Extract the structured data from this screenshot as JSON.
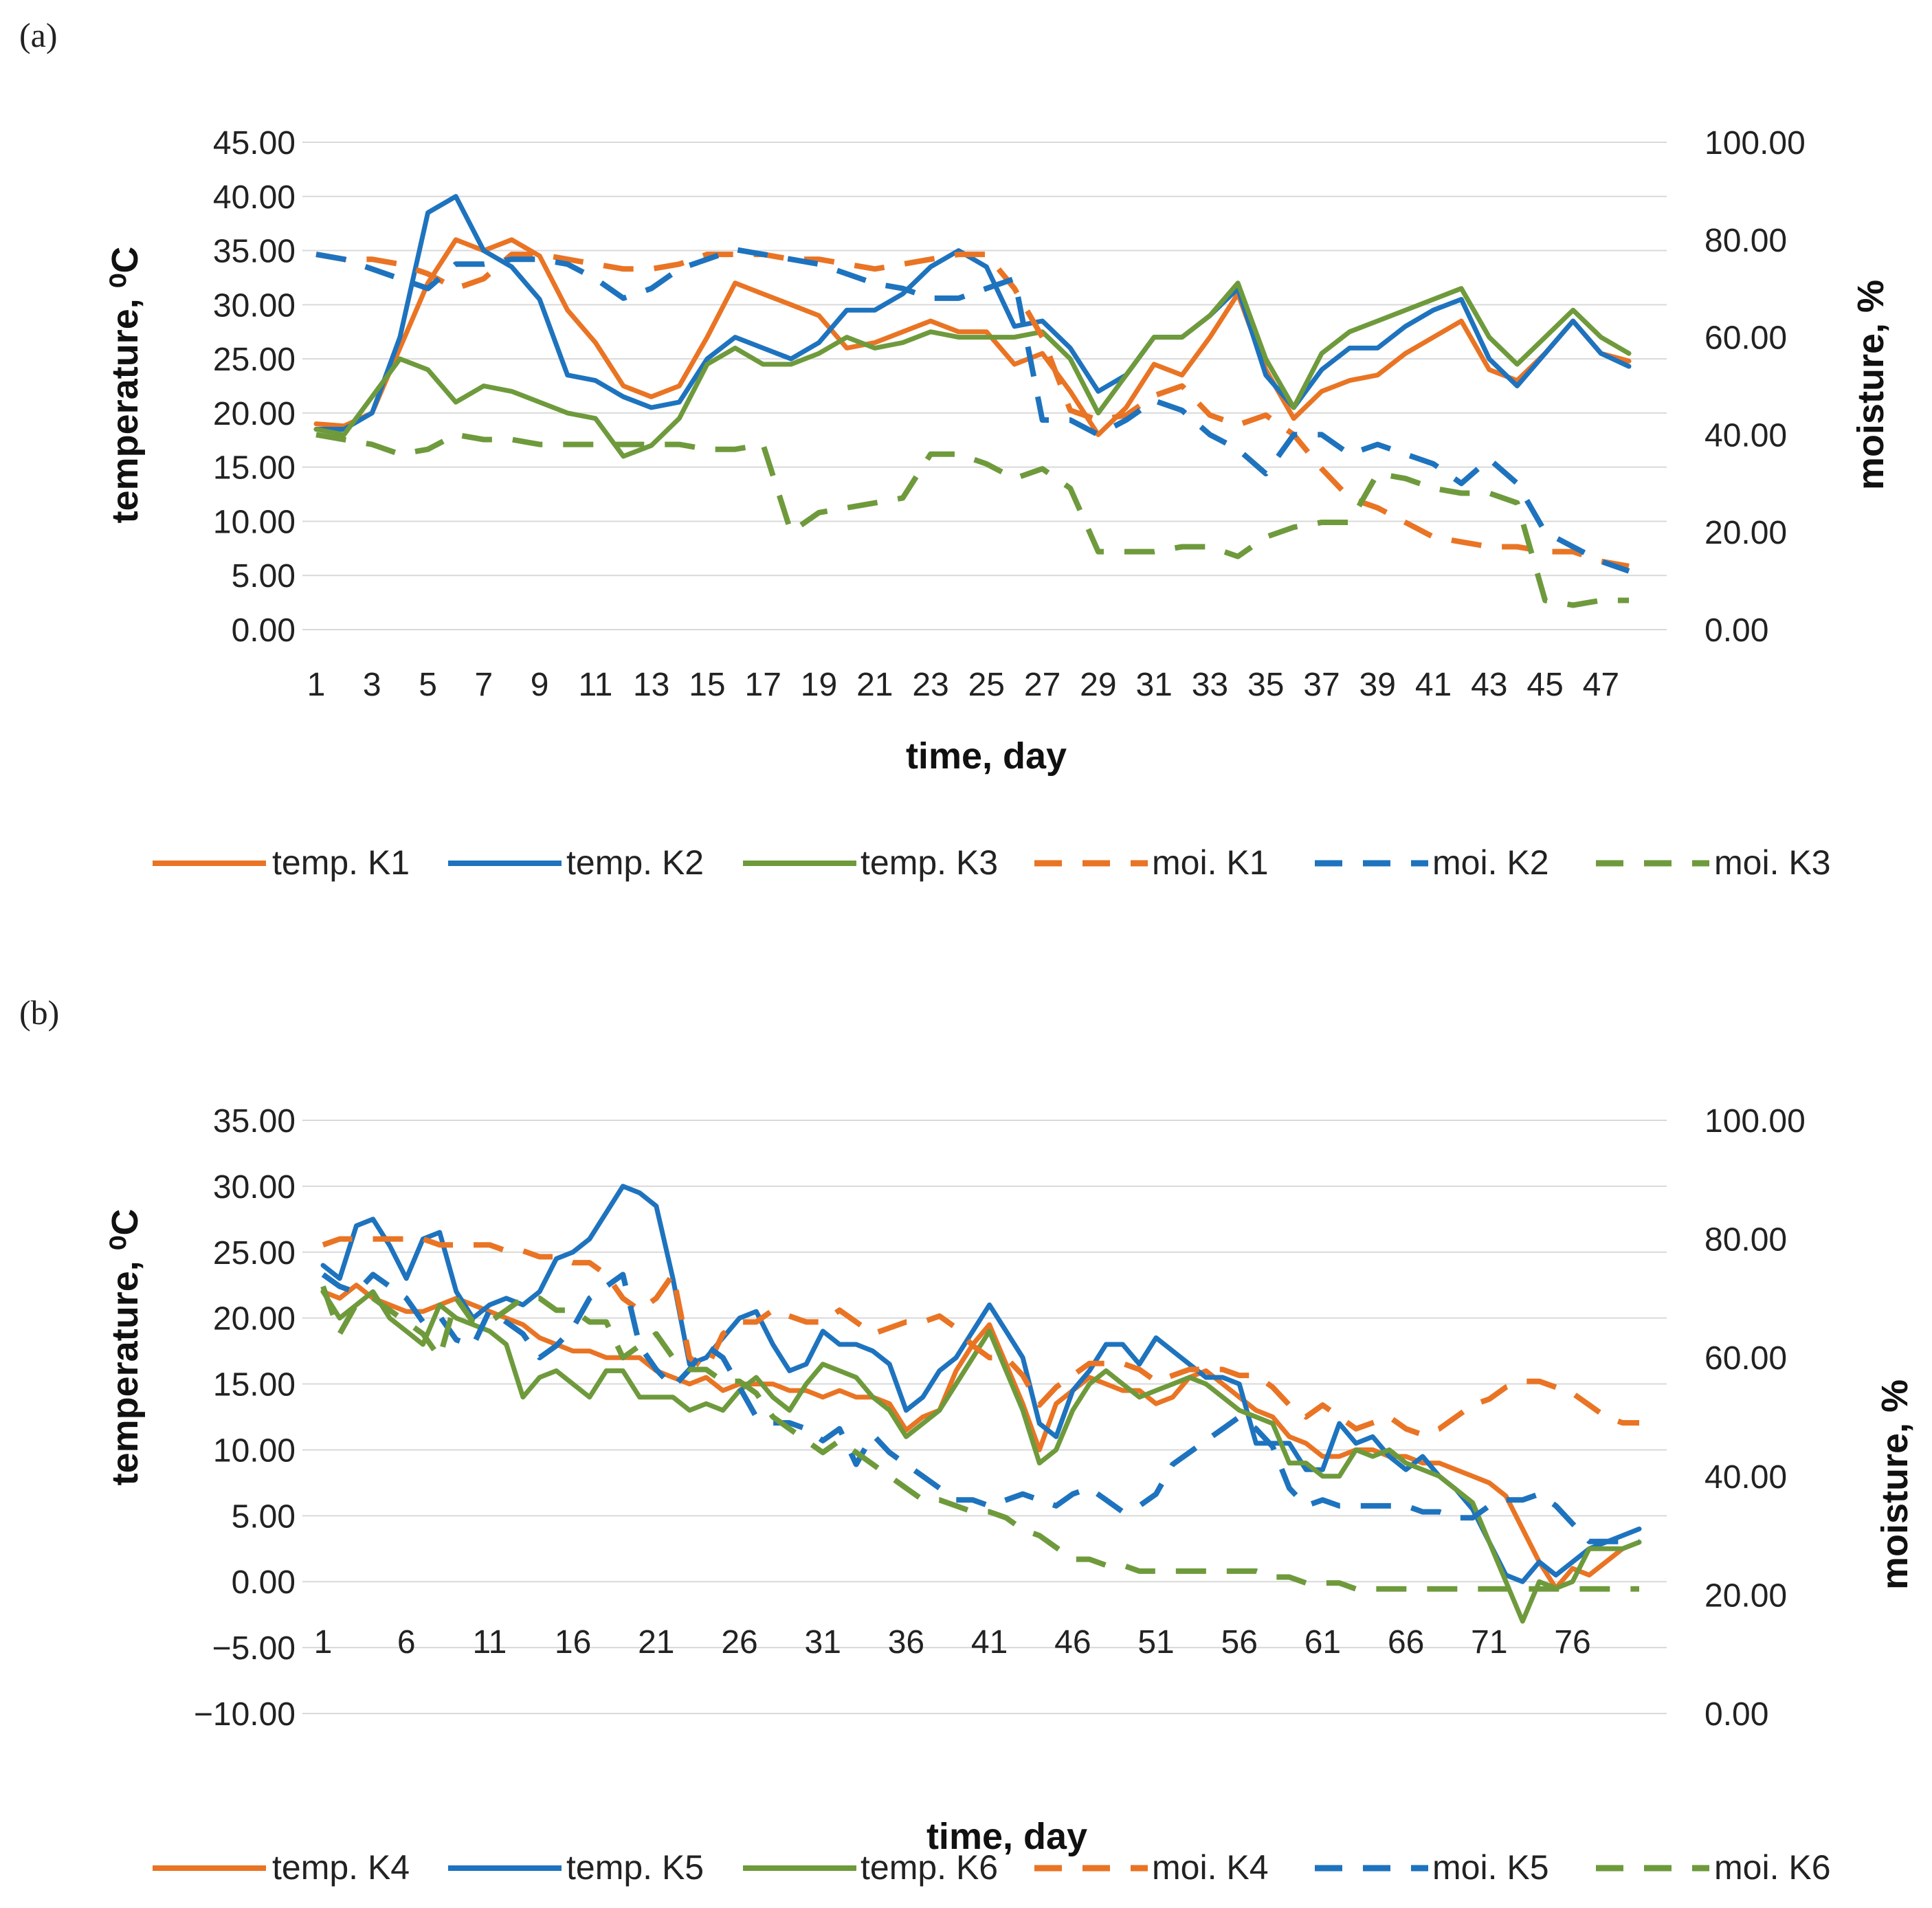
{
  "colors": {
    "orange": "#E97424",
    "blue": "#1E73BE",
    "green": "#6E9A3C",
    "grid": "#d9d9d9"
  },
  "chart_data": [
    {
      "panel": "(a)",
      "type": "line",
      "xlabel": "time, day",
      "ylabel_left": "temperature, ⁰C",
      "ylabel_right": "moisture, %",
      "ylim_left": [
        0,
        45
      ],
      "ylim_right": [
        0,
        100
      ],
      "left_ticks": [
        "0.00",
        "5.00",
        "10.00",
        "15.00",
        "20.00",
        "25.00",
        "30.00",
        "35.00",
        "40.00",
        "45.00"
      ],
      "right_ticks": [
        "0.00",
        "20.00",
        "40.00",
        "60.00",
        "80.00",
        "100.00"
      ],
      "x_ticks": [
        1,
        3,
        5,
        7,
        9,
        11,
        13,
        15,
        17,
        19,
        21,
        23,
        25,
        27,
        29,
        31,
        33,
        35,
        37,
        39,
        41,
        43,
        45,
        47
      ],
      "x_max": 48,
      "series": [
        {
          "name": "temp. K1",
          "axis": "left",
          "style": "solid",
          "color": "orange",
          "values": [
            19,
            18.8,
            20,
            26,
            32,
            36,
            35,
            36,
            34.5,
            29.5,
            26.5,
            22.5,
            21.5,
            22.5,
            27,
            32,
            31,
            30,
            29,
            26,
            26.5,
            27.5,
            28.5,
            27.5,
            27.5,
            24.5,
            25.5,
            22,
            18,
            20.5,
            24.5,
            23.5,
            27,
            31,
            24,
            19.5,
            22,
            23,
            23.5,
            25.5,
            27,
            28.5,
            24,
            23,
            25.5,
            28.5,
            25.5,
            24.8
          ]
        },
        {
          "name": "temp. K2",
          "axis": "left",
          "style": "solid",
          "color": "blue",
          "values": [
            18.5,
            18.5,
            20,
            27,
            38.5,
            40,
            35,
            33.5,
            30.5,
            23.5,
            23,
            21.5,
            20.5,
            21,
            25,
            27,
            26,
            25,
            26.5,
            29.5,
            29.5,
            31,
            33.5,
            35,
            33.5,
            28,
            28.5,
            26,
            22,
            23.5,
            27,
            27,
            29,
            31.5,
            23.5,
            20.5,
            24,
            26,
            26,
            28,
            29.5,
            30.5,
            25,
            22.5,
            25.5,
            28.5,
            25.5,
            24.3
          ]
        },
        {
          "name": "temp. K3",
          "axis": "left",
          "style": "solid",
          "color": "green",
          "values": [
            18.5,
            18,
            21.5,
            25,
            24,
            21,
            22.5,
            22,
            21,
            20,
            19.5,
            16,
            17,
            19.5,
            24.5,
            26,
            24.5,
            24.5,
            25.5,
            27,
            26,
            26.5,
            27.5,
            27,
            27,
            27,
            27.5,
            25,
            20,
            23.5,
            27,
            27,
            29,
            32,
            25,
            20.5,
            25.5,
            27.5,
            28.5,
            29.5,
            30.5,
            31.5,
            27,
            24.5,
            27,
            29.5,
            27,
            25.5
          ]
        },
        {
          "name": "moi. K1",
          "axis": "right",
          "style": "dashed",
          "color": "orange",
          "values": [
            77,
            76,
            76,
            75,
            73,
            70,
            72,
            77,
            77,
            76,
            75,
            74,
            74,
            75,
            77,
            77,
            77,
            76,
            76,
            75,
            74,
            75,
            76,
            77,
            77,
            70,
            60,
            45,
            43,
            44,
            48,
            50,
            44,
            42,
            44,
            40,
            33,
            27,
            25,
            22,
            19,
            18,
            17,
            17,
            16,
            16,
            14,
            13
          ]
        },
        {
          "name": "moi. K2",
          "axis": "right",
          "style": "dashed",
          "color": "blue",
          "values": [
            77,
            76,
            74,
            72,
            70,
            75,
            75,
            76,
            76,
            75,
            72,
            68,
            70,
            74,
            76,
            78,
            77,
            76,
            75,
            73,
            71,
            70,
            68,
            68,
            70,
            72,
            43,
            43,
            40,
            43,
            47,
            45,
            40,
            37,
            32,
            40,
            40,
            36,
            38,
            36,
            34,
            30,
            35,
            30,
            20,
            17,
            14,
            12
          ]
        },
        {
          "name": "moi. K3",
          "axis": "right",
          "style": "dashed",
          "color": "green",
          "values": [
            40,
            39,
            38,
            36,
            37,
            40,
            39,
            39,
            38,
            38,
            38,
            38,
            38,
            38,
            37,
            37,
            38,
            20,
            24,
            25,
            26,
            27,
            36,
            36,
            34,
            31,
            33,
            29,
            16,
            16,
            16,
            17,
            17,
            15,
            19,
            21,
            22,
            22,
            32,
            31,
            29,
            28,
            28,
            26,
            6,
            5,
            6,
            6
          ]
        }
      ]
    },
    {
      "panel": "(b)",
      "type": "line",
      "xlabel": "time, day",
      "ylabel_left": "temperature, ⁰C",
      "ylabel_right": "moisture, %",
      "ylim_left": [
        -10,
        35
      ],
      "ylim_right": [
        0,
        100
      ],
      "left_ticks": [
        "−10.00",
        "−5.00",
        "0.00",
        "5.00",
        "10.00",
        "15.00",
        "20.00",
        "25.00",
        "30.00",
        "35.00"
      ],
      "right_ticks": [
        "0.00",
        "20.00",
        "40.00",
        "60.00",
        "80.00",
        "100.00"
      ],
      "x_ticks": [
        1,
        6,
        11,
        16,
        21,
        26,
        31,
        36,
        41,
        46,
        51,
        56,
        61,
        66,
        71,
        76
      ],
      "x_max": 80,
      "series": [
        {
          "name": "temp. K4",
          "axis": "left",
          "style": "solid",
          "color": "orange",
          "values": [
            22.0,
            21.5,
            22.5,
            21.5,
            21.0,
            20.5,
            20.5,
            21.0,
            21.5,
            21.0,
            20.5,
            20.0,
            19.5,
            18.5,
            18.0,
            17.5,
            17.5,
            17.0,
            17.0,
            17.0,
            16.0,
            15.5,
            15.0,
            15.5,
            14.5,
            15.0,
            15.0,
            15.0,
            14.5,
            14.5,
            14.0,
            14.5,
            14.0,
            14.0,
            13.5,
            11.5,
            12.5,
            13.0,
            16.0,
            18.0,
            19.5,
            16.5,
            13.5,
            10.0,
            13.5,
            14.5,
            15.5,
            15.0,
            14.5,
            14.5,
            13.5,
            14.0,
            15.5,
            16.0,
            15.0,
            14.0,
            13.0,
            12.5,
            11.0,
            10.5,
            9.5,
            9.5,
            10.0,
            10.0,
            9.5,
            9.5,
            9.0,
            9.0,
            8.5,
            8.0,
            7.5,
            6.5,
            4.0,
            1.5,
            -0.5,
            1.0,
            0.5,
            1.5,
            2.5,
            3.0
          ]
        },
        {
          "name": "temp. K5",
          "axis": "left",
          "style": "solid",
          "color": "blue",
          "values": [
            24,
            23,
            27,
            27.5,
            25.5,
            23,
            26,
            26.5,
            22,
            20,
            21,
            21.5,
            21,
            22,
            24.5,
            25,
            26,
            28,
            30,
            29.5,
            28.5,
            23,
            16.5,
            17,
            18.5,
            20,
            20.5,
            18,
            16,
            16.5,
            19,
            18,
            18,
            17.5,
            16.5,
            13,
            14,
            16,
            17,
            19,
            21,
            19,
            17,
            12,
            11,
            14.5,
            16,
            18,
            18,
            16.5,
            18.5,
            17.5,
            16.5,
            15.5,
            15.5,
            15,
            10.5,
            10.5,
            10.5,
            8.5,
            8.5,
            12,
            10.5,
            11,
            9.5,
            8.5,
            9.5,
            8,
            7,
            5.5,
            3,
            0.5,
            0,
            1.5,
            0.5,
            1.5,
            2.5,
            3,
            3.5,
            4
          ]
        },
        {
          "name": "temp. K6",
          "axis": "left",
          "style": "solid",
          "color": "green",
          "values": [
            22,
            20,
            21,
            22,
            20,
            19,
            18,
            21,
            20,
            19.5,
            19,
            18,
            14,
            15.5,
            16,
            15,
            14,
            16,
            16,
            14,
            14,
            14,
            13,
            13.5,
            13,
            14.5,
            15.5,
            14,
            13,
            15,
            16.5,
            16,
            15.5,
            14,
            13,
            11,
            12,
            13,
            15,
            17,
            19,
            16,
            13,
            9,
            10,
            13,
            15,
            16,
            15,
            14,
            14.5,
            15,
            15.5,
            15,
            14,
            13,
            12.5,
            12,
            9,
            9,
            8,
            8,
            10,
            9.5,
            10,
            9,
            8.5,
            8,
            7,
            6,
            3,
            0,
            -3,
            0,
            -0.5,
            0,
            2.5,
            2.5,
            2.5,
            3
          ]
        },
        {
          "name": "moi. K4",
          "axis": "right",
          "style": "dashed",
          "color": "orange",
          "values": [
            79,
            80,
            80,
            80,
            80,
            80,
            80,
            79,
            79,
            79,
            79,
            78,
            78,
            77,
            77,
            76,
            76,
            74,
            70,
            68,
            70,
            74,
            60,
            58,
            64,
            66,
            66,
            68,
            67,
            66,
            66,
            68,
            66,
            64,
            65,
            66,
            66,
            67,
            65,
            62,
            60,
            60,
            57,
            52,
            55,
            57,
            59,
            59,
            59,
            58,
            56,
            57,
            58,
            58,
            58,
            57,
            57,
            55,
            52,
            50,
            52,
            50,
            48,
            49,
            50,
            48,
            47,
            48,
            50,
            52,
            53,
            55,
            56,
            56,
            55,
            54,
            52,
            50,
            49,
            49
          ]
        },
        {
          "name": "moi. K5",
          "axis": "right",
          "style": "dashed",
          "color": "blue",
          "values": [
            74,
            72,
            71,
            74,
            72,
            70,
            66,
            67,
            63,
            62,
            68,
            66,
            64,
            60,
            62,
            65,
            70,
            72,
            74,
            62,
            58,
            55,
            58,
            62,
            60,
            55,
            50,
            49,
            49,
            48,
            46,
            48,
            42,
            47,
            44,
            42,
            40,
            38,
            36,
            36,
            35,
            36,
            37,
            36,
            35,
            37,
            38,
            36,
            34,
            35,
            37,
            42,
            44,
            46,
            48,
            50,
            48,
            45,
            38,
            35,
            36,
            35,
            35,
            35,
            35,
            35,
            34,
            34,
            33,
            33,
            35,
            36,
            36,
            37,
            35,
            32,
            29,
            29,
            29,
            29
          ]
        },
        {
          "name": "moi. K6",
          "axis": "right",
          "style": "dashed",
          "color": "green",
          "values": [
            72,
            64,
            69,
            70,
            68,
            66,
            64,
            60,
            70,
            66,
            66,
            68,
            70,
            70,
            68,
            68,
            66,
            66,
            60,
            62,
            64,
            60,
            58,
            58,
            56,
            56,
            54,
            50,
            48,
            46,
            44,
            46,
            44,
            42,
            40,
            38,
            36,
            36,
            35,
            34,
            34,
            33,
            31,
            30,
            28,
            26,
            26,
            25,
            25,
            24,
            24,
            24,
            24,
            24,
            24,
            24,
            24,
            23,
            23,
            22,
            22,
            22,
            21,
            21,
            21,
            21,
            21,
            21,
            21,
            21,
            21,
            21,
            21,
            21,
            21,
            21,
            21,
            21,
            21,
            21
          ]
        }
      ]
    }
  ]
}
